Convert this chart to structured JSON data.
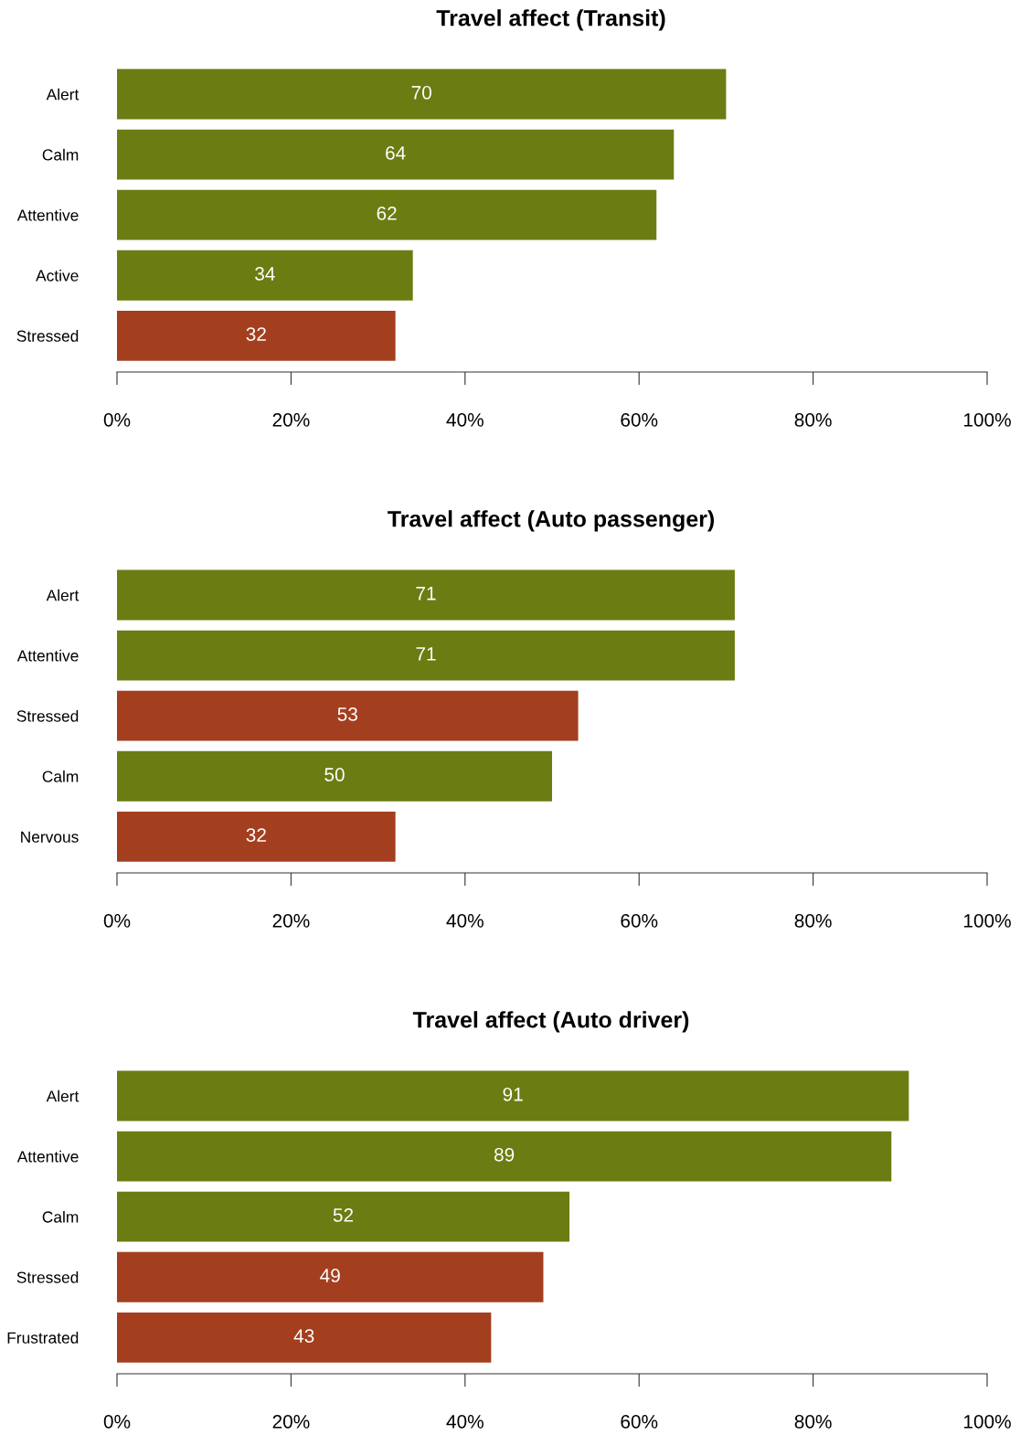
{
  "chart_data": [
    {
      "type": "bar",
      "orientation": "horizontal",
      "title": "Travel affect (Transit)",
      "categories": [
        "Alert",
        "Calm",
        "Attentive",
        "Active",
        "Stressed"
      ],
      "values": [
        70,
        64,
        62,
        34,
        32
      ],
      "colors": [
        "#6b7d12",
        "#6b7d12",
        "#6b7d12",
        "#6b7d12",
        "#a33f1f"
      ],
      "data_labels": true,
      "xlim": [
        0,
        100
      ],
      "xticks": [
        {
          "value": 0,
          "label": "0%"
        },
        {
          "value": 20,
          "label": "20%"
        },
        {
          "value": 40,
          "label": "40%"
        },
        {
          "value": 60,
          "label": "60%"
        },
        {
          "value": 80,
          "label": "80%"
        },
        {
          "value": 100,
          "label": "100%"
        }
      ]
    },
    {
      "type": "bar",
      "orientation": "horizontal",
      "title": "Travel affect (Auto passenger)",
      "categories": [
        "Alert",
        "Attentive",
        "Stressed",
        "Calm",
        "Nervous"
      ],
      "values": [
        71,
        71,
        53,
        50,
        32
      ],
      "colors": [
        "#6b7d12",
        "#6b7d12",
        "#a33f1f",
        "#6b7d12",
        "#a33f1f"
      ],
      "data_labels": true,
      "xlim": [
        0,
        100
      ],
      "xticks": [
        {
          "value": 0,
          "label": "0%"
        },
        {
          "value": 20,
          "label": "20%"
        },
        {
          "value": 40,
          "label": "40%"
        },
        {
          "value": 60,
          "label": "60%"
        },
        {
          "value": 80,
          "label": "80%"
        },
        {
          "value": 100,
          "label": "100%"
        }
      ]
    },
    {
      "type": "bar",
      "orientation": "horizontal",
      "title": "Travel affect (Auto driver)",
      "categories": [
        "Alert",
        "Attentive",
        "Calm",
        "Stressed",
        "Frustrated"
      ],
      "values": [
        91,
        89,
        52,
        49,
        43
      ],
      "colors": [
        "#6b7d12",
        "#6b7d12",
        "#6b7d12",
        "#a33f1f",
        "#a33f1f"
      ],
      "data_labels": true,
      "xlim": [
        0,
        100
      ],
      "xticks": [
        {
          "value": 0,
          "label": "0%"
        },
        {
          "value": 20,
          "label": "20%"
        },
        {
          "value": 40,
          "label": "40%"
        },
        {
          "value": 60,
          "label": "60%"
        },
        {
          "value": 80,
          "label": "80%"
        },
        {
          "value": 100,
          "label": "100%"
        }
      ]
    }
  ]
}
